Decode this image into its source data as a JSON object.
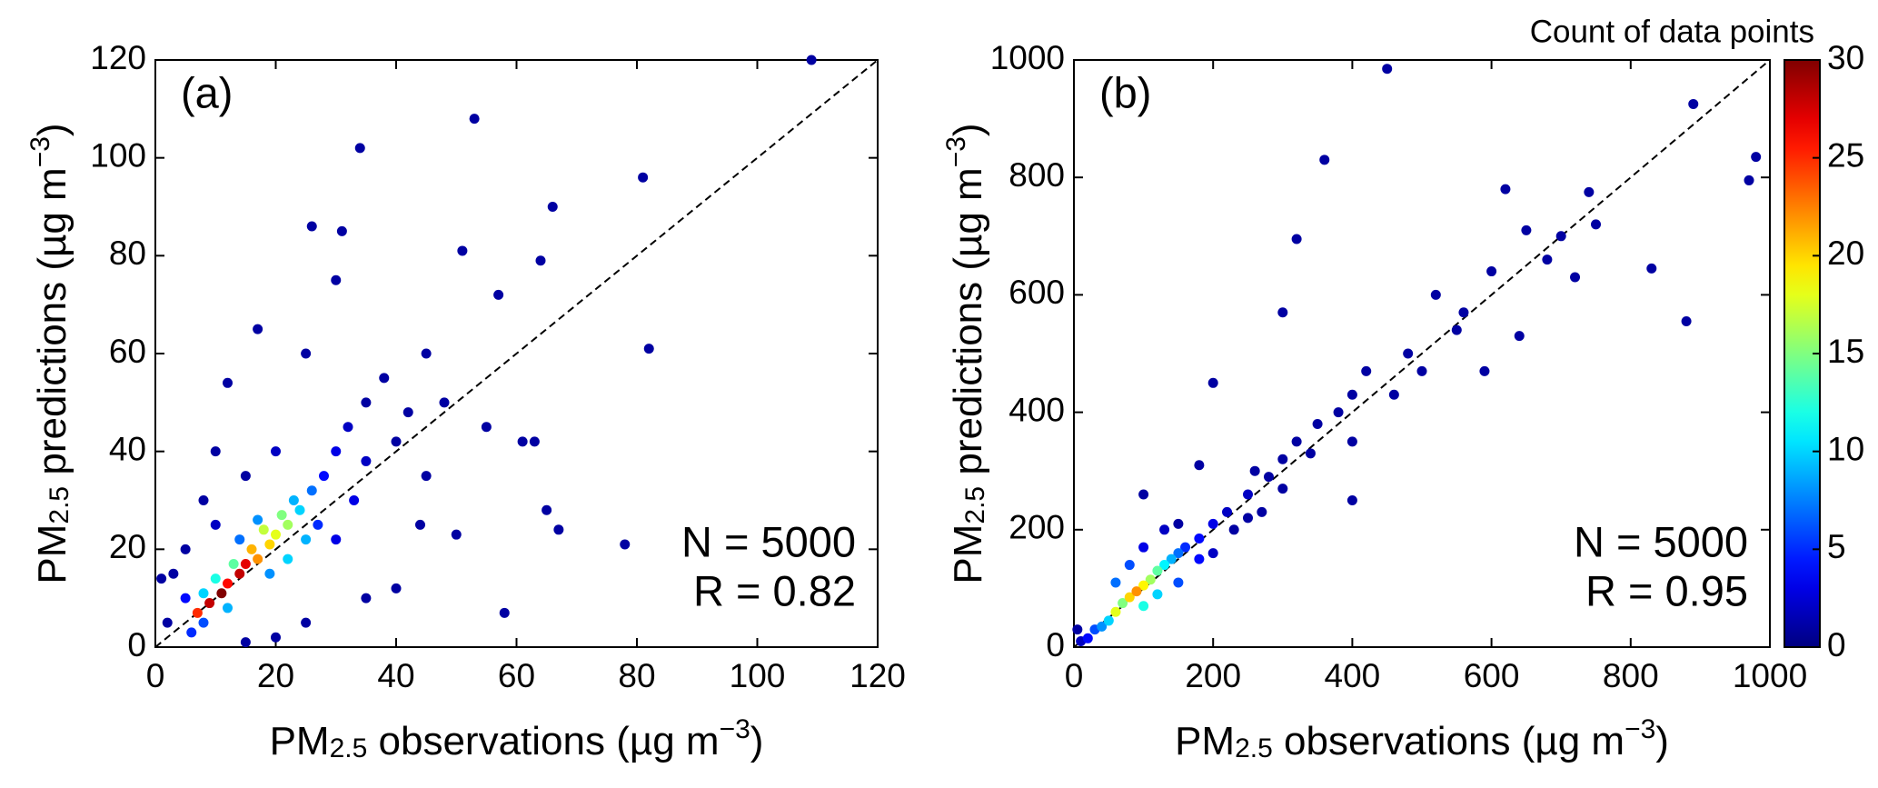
{
  "chart_data": [
    {
      "type": "scatter",
      "title": "(a)",
      "xlabel": [
        {
          "text": "PM"
        },
        {
          "text": "2.5",
          "sub": true
        },
        {
          "text": " observations (µg m"
        },
        {
          "text": "−3",
          "sup": true
        },
        {
          "text": ")"
        }
      ],
      "ylabel": [
        {
          "text": "PM"
        },
        {
          "text": "2.5",
          "sub": true
        },
        {
          "text": " predictions (µg m"
        },
        {
          "text": "−3",
          "sup": true
        },
        {
          "text": ")"
        }
      ],
      "annotations": [
        "N = 5000",
        "R = 0.82"
      ],
      "xlim": [
        0,
        120
      ],
      "ylim": [
        0,
        120
      ],
      "xticks": [
        0,
        20,
        40,
        60,
        80,
        100,
        120
      ],
      "yticks": [
        0,
        20,
        40,
        60,
        80,
        100,
        120
      ],
      "diagonal": true,
      "series": [
        {
          "x": [
            7,
            9,
            11,
            12,
            14,
            15,
            17,
            19,
            20,
            22,
            21,
            18,
            16,
            13,
            10,
            8,
            24,
            26,
            23,
            17,
            14,
            25,
            22,
            19,
            12,
            8,
            6,
            5,
            28,
            30,
            32,
            35,
            38,
            27,
            30,
            33,
            35,
            40,
            42,
            45,
            20,
            15,
            10,
            5,
            3,
            2,
            1,
            8,
            10,
            12,
            17,
            25,
            26,
            31,
            34,
            53,
            109,
            81,
            66,
            51,
            64,
            57,
            58,
            65,
            67,
            78,
            82,
            61,
            63,
            50,
            44,
            40,
            35,
            25,
            20,
            15,
            30,
            45,
            48,
            55
          ],
          "values": [
            7,
            9,
            11,
            13,
            15,
            17,
            18,
            21,
            23,
            25,
            27,
            24,
            20,
            17,
            14,
            11,
            28,
            32,
            30,
            26,
            22,
            22,
            18,
            15,
            8,
            5,
            3,
            10,
            35,
            40,
            45,
            50,
            55,
            25,
            22,
            30,
            38,
            42,
            48,
            60,
            40,
            35,
            25,
            20,
            15,
            5,
            14,
            30,
            40,
            54,
            65,
            60,
            86,
            85,
            102,
            108,
            120,
            96,
            90,
            81,
            79,
            72,
            7,
            28,
            24,
            21,
            61,
            42,
            42,
            23,
            25,
            12,
            10,
            5,
            2,
            1,
            75,
            35,
            50,
            45
          ],
          "counts": [
            25,
            28,
            30,
            26,
            28,
            27,
            22,
            20,
            18,
            16,
            15,
            17,
            21,
            14,
            12,
            10,
            10,
            7,
            9,
            8,
            7,
            9,
            10,
            8,
            9,
            6,
            5,
            4,
            4,
            3,
            2,
            1,
            1,
            5,
            3,
            3,
            2,
            1,
            1,
            1,
            2,
            1,
            2,
            1,
            1,
            1,
            1,
            1,
            1,
            1,
            1,
            1,
            1,
            1,
            1,
            1,
            1,
            1,
            1,
            1,
            1,
            1,
            1,
            1,
            1,
            1,
            1,
            1,
            1,
            1,
            1,
            1,
            1,
            1,
            1,
            1,
            1,
            1,
            1,
            1
          ]
        }
      ]
    },
    {
      "type": "scatter",
      "title": "(b)",
      "xlabel": [
        {
          "text": "PM"
        },
        {
          "text": "2.5",
          "sub": true
        },
        {
          "text": " observations (µg m"
        },
        {
          "text": "−3",
          "sup": true
        },
        {
          "text": ")"
        }
      ],
      "ylabel": [
        {
          "text": "PM"
        },
        {
          "text": "2.5",
          "sub": true
        },
        {
          "text": " predictions (µg m"
        },
        {
          "text": "−3",
          "sup": true
        },
        {
          "text": ")"
        }
      ],
      "annotations": [
        "N = 5000",
        "R = 0.95"
      ],
      "xlim": [
        0,
        1000
      ],
      "ylim": [
        0,
        1000
      ],
      "xticks": [
        0,
        200,
        400,
        600,
        800,
        1000
      ],
      "yticks": [
        0,
        200,
        400,
        600,
        800,
        1000
      ],
      "diagonal": true,
      "series": [
        {
          "x": [
            60,
            80,
            90,
            100,
            110,
            120,
            70,
            130,
            140,
            150,
            160,
            180,
            200,
            220,
            250,
            280,
            300,
            320,
            350,
            380,
            400,
            50,
            40,
            30,
            20,
            10,
            5,
            100,
            120,
            150,
            180,
            60,
            80,
            100,
            130,
            200,
            230,
            250,
            270,
            300,
            340,
            400,
            400,
            450,
            360,
            320,
            300,
            200,
            420,
            480,
            520,
            560,
            590,
            600,
            620,
            650,
            680,
            700,
            720,
            740,
            750,
            830,
            880,
            890,
            970,
            980,
            640,
            550,
            460,
            500,
            180,
            260,
            100,
            150
          ],
          "values": [
            60,
            85,
            95,
            105,
            115,
            130,
            75,
            140,
            150,
            160,
            170,
            185,
            210,
            230,
            260,
            290,
            320,
            350,
            380,
            400,
            430,
            45,
            35,
            30,
            15,
            10,
            30,
            70,
            90,
            110,
            150,
            110,
            140,
            170,
            200,
            160,
            200,
            220,
            230,
            270,
            330,
            350,
            250,
            985,
            830,
            695,
            570,
            450,
            470,
            500,
            600,
            570,
            470,
            640,
            780,
            710,
            660,
            700,
            630,
            775,
            720,
            645,
            555,
            925,
            795,
            835,
            530,
            540,
            430,
            470,
            310,
            300,
            260,
            210
          ],
          "counts": [
            18,
            20,
            22,
            19,
            16,
            14,
            15,
            11,
            9,
            7,
            5,
            4,
            3,
            2,
            2,
            1,
            1,
            1,
            1,
            1,
            1,
            10,
            8,
            6,
            4,
            2,
            1,
            12,
            10,
            6,
            4,
            7,
            6,
            3,
            2,
            2,
            1,
            1,
            1,
            1,
            1,
            1,
            1,
            1,
            1,
            1,
            1,
            1,
            1,
            1,
            1,
            1,
            1,
            1,
            1,
            1,
            1,
            1,
            1,
            1,
            1,
            1,
            1,
            1,
            1,
            1,
            1,
            1,
            1,
            1,
            1,
            1,
            1,
            1
          ]
        }
      ],
      "colorbar": {
        "title": "Count of data points",
        "colormap": "jet",
        "lim": [
          0,
          30
        ],
        "ticks": [
          0,
          5,
          10,
          15,
          20,
          25,
          30
        ]
      }
    }
  ]
}
